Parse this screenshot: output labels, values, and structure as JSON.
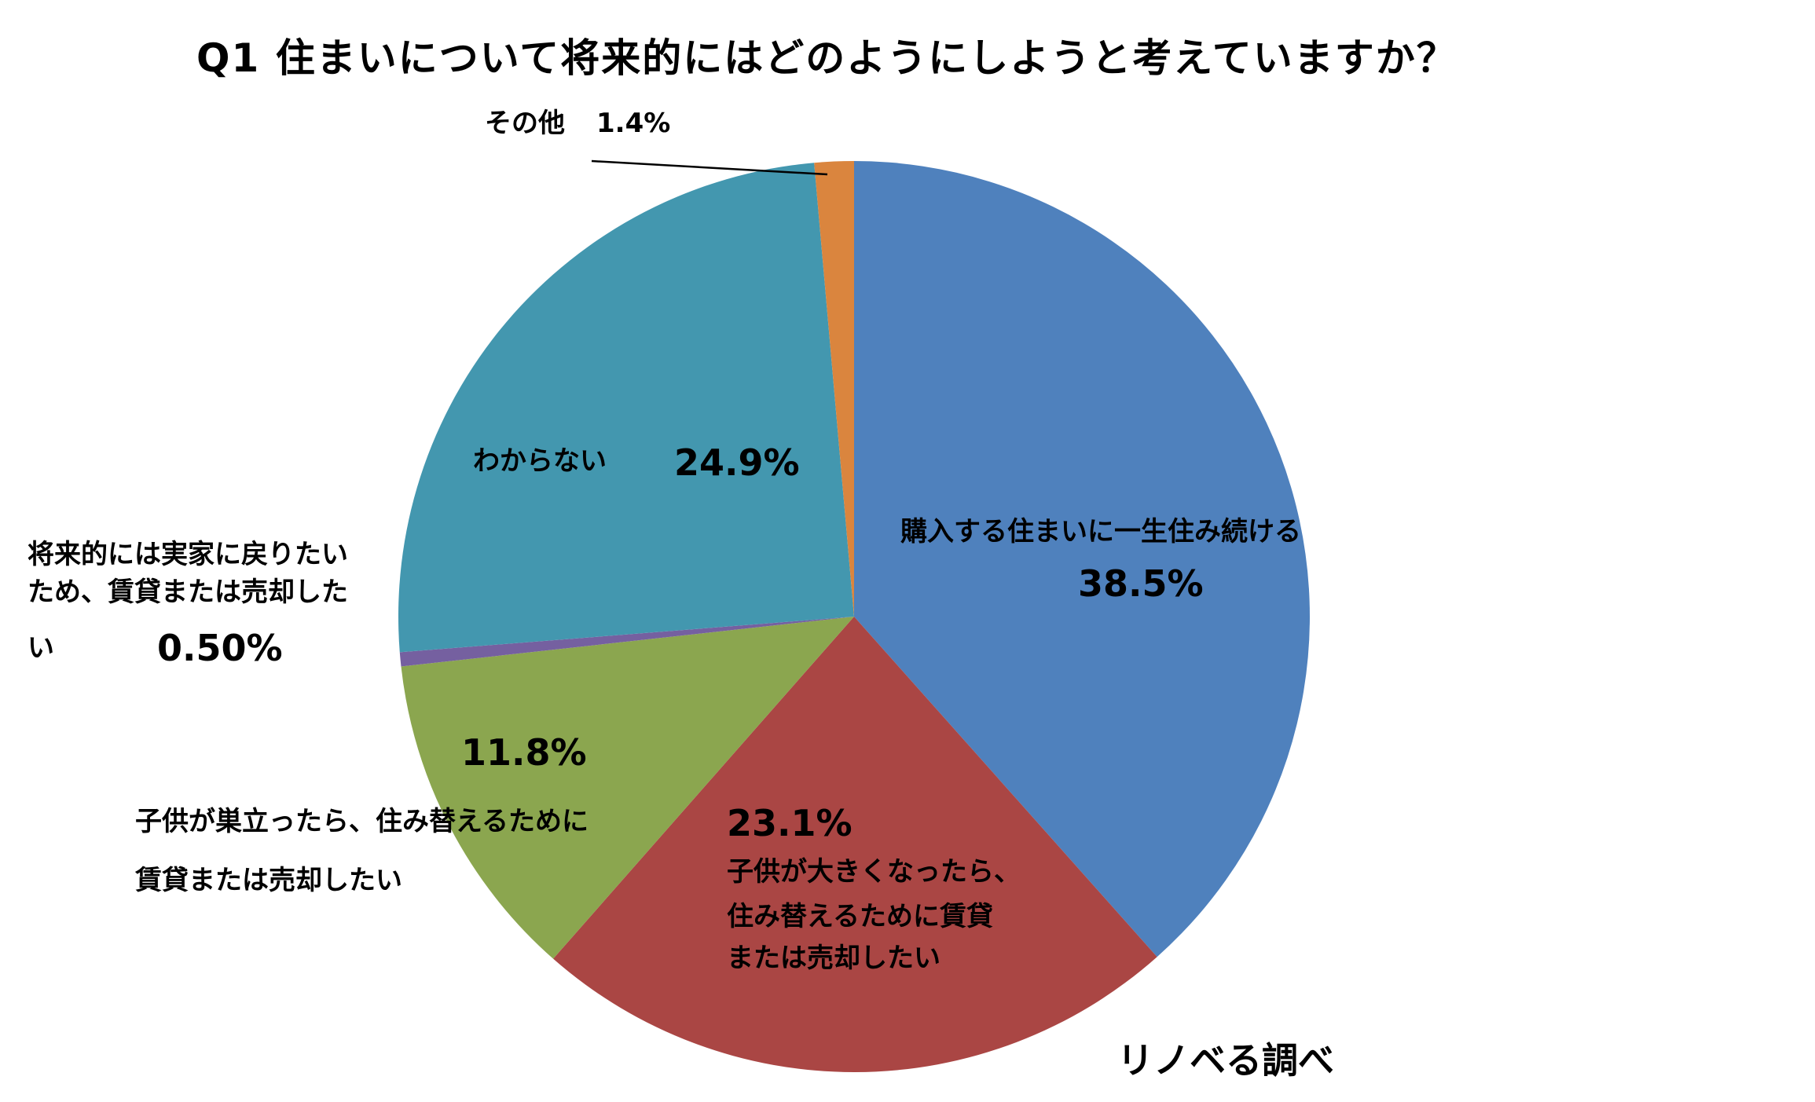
{
  "chart_data": {
    "type": "pie",
    "title": "Q1 住まいについて将来的にはどのようにしようと考えていますか？",
    "start_angle_deg": 0,
    "direction": "clockwise",
    "slices": [
      {
        "label": "購入する住まいに一生住み続ける",
        "value": 38.5,
        "display": "38.5%",
        "color": "#4F81BD"
      },
      {
        "label": "子供が大きくなったら、住み替えるために賃貸または売却したい",
        "value": 23.1,
        "display": "23.1%",
        "color": "#AA4644"
      },
      {
        "label": "子供が巣立ったら、住み替えるために賃貸または売却したい",
        "value": 11.8,
        "display": "11.8%",
        "color": "#8BA64F"
      },
      {
        "label": "将来的には実家に戻りたいため、賃貸または売却したい",
        "value": 0.5,
        "display": "0.50%",
        "color": "#7560A0"
      },
      {
        "label": "わからない",
        "value": 24.9,
        "display": "24.9%",
        "color": "#4397AF"
      },
      {
        "label": "その他",
        "value": 1.4,
        "display": "1.4%",
        "color": "#DA853E"
      }
    ],
    "source_note": "リノベる調べ",
    "legend": "none (data labels on/near slices)"
  },
  "labels": {
    "title": "Q1 住まいについて将来的にはどのようにしようと考えていますか？",
    "buy_live_forever": {
      "line1": "購入する住まいに一生住み続ける",
      "pct": "38.5%"
    },
    "kids_grow": {
      "pct": "23.1%",
      "line1": "子供が大きくなったら、",
      "line2": "住み替えるために賃貸",
      "line3": "または売却したい"
    },
    "kids_leave": {
      "pct": "11.8%",
      "line1": "子供が巣立ったら、住み替えるために",
      "line2": "賃貸または売却したい"
    },
    "return_home": {
      "line1": "将来的には実家に戻りたい",
      "line2": "ため、賃貸または売却した",
      "line3": "い",
      "pct": "0.50%"
    },
    "unknown": {
      "line1": "わからない",
      "pct": "24.9%"
    },
    "other": {
      "line1": "その他",
      "pct": "1.4%"
    },
    "source": "リノベる調べ"
  }
}
